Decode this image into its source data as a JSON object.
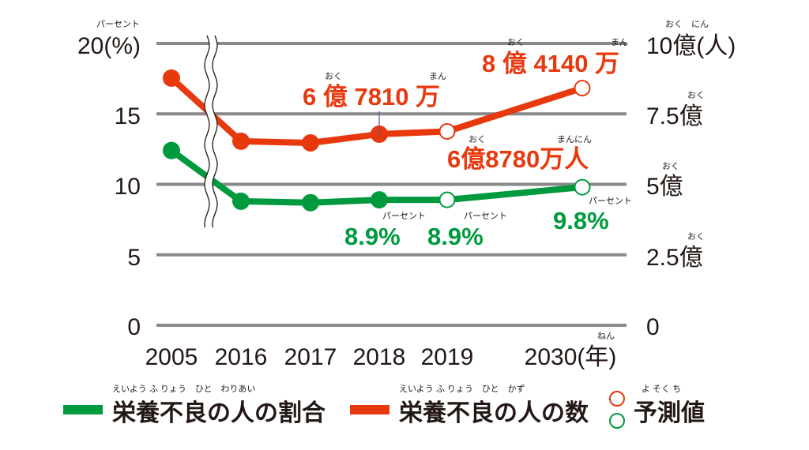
{
  "chart_data": {
    "type": "line",
    "categories": [
      "2005",
      "2016",
      "2017",
      "2018",
      "2019",
      "2030"
    ],
    "x_tick_labels": [
      "2005",
      "2016",
      "2017",
      "2018",
      "2019",
      "2030(年)"
    ],
    "x_tick_ruby": "ねん",
    "left_axis": {
      "ticks": [
        "0",
        "5",
        "10",
        "15",
        "20(%)"
      ],
      "values": [
        0,
        5,
        10,
        15,
        20
      ],
      "ruby": "パーセント",
      "range": [
        0,
        20
      ]
    },
    "right_axis": {
      "ticks": [
        "0",
        "2.5億",
        "5億",
        "7.5億",
        "10億(人)"
      ],
      "values": [
        0,
        2.5,
        5,
        7.5,
        10
      ],
      "ruby_oku": "おく",
      "ruby_top": "おく　にん",
      "range": [
        0,
        10
      ],
      "unit": "億人"
    },
    "grid": true,
    "axis_break": "between 2005 and 2016",
    "series": [
      {
        "name": "栄養不良の人の割合",
        "ruby": "えいよう ふ りょう　ひと　わりあい",
        "axis": "left",
        "color": "#009a3e",
        "values": [
          12.4,
          8.8,
          8.7,
          8.9,
          8.9,
          9.8
        ],
        "forecast": [
          false,
          false,
          false,
          false,
          true,
          true
        ]
      },
      {
        "name": "栄養不良の人の数",
        "ruby": "えいよう ふ りょう　ひと　かず",
        "axis": "right",
        "color": "#e8380d",
        "values": [
          8.77,
          6.53,
          6.47,
          6.781,
          6.878,
          8.414
        ],
        "forecast": [
          false,
          false,
          false,
          false,
          true,
          true
        ]
      }
    ],
    "annotations": {
      "red_2018": {
        "text": "6 億 7810 万",
        "ruby1": "おく",
        "ruby2": "まん"
      },
      "red_2019": {
        "text": "6億8780万人",
        "ruby1": "おく",
        "ruby2": "まんにん"
      },
      "red_2030": {
        "text": "8 億 4140 万",
        "ruby1": "おく",
        "ruby2": "まん"
      },
      "green_2018": {
        "text": "8.9%",
        "ruby": "パーセント"
      },
      "green_2019": {
        "text": "8.9%",
        "ruby": "パーセント"
      },
      "green_2030": {
        "text": "9.8%",
        "ruby": "パーセント"
      }
    },
    "legend": {
      "forecast_label": "予測値",
      "forecast_ruby": "よ そく ち",
      "placement": "bottom"
    }
  }
}
